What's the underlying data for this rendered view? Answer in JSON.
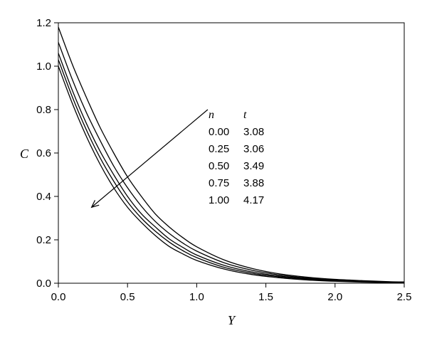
{
  "chart_data": {
    "type": "line",
    "xlabel": "Y",
    "ylabel": "C",
    "xlim": [
      0.0,
      2.5
    ],
    "ylim": [
      0.0,
      1.2
    ],
    "x_ticks": [
      "0.0",
      "0.5",
      "1.0",
      "1.5",
      "2.0",
      "2.5"
    ],
    "y_ticks": [
      "0.0",
      "0.2",
      "0.4",
      "0.6",
      "0.8",
      "1.0",
      "1.2"
    ],
    "grid": false,
    "legend": {
      "placement": "center-right",
      "headers": [
        "n",
        "t"
      ],
      "rows": [
        [
          "0.00",
          "3.08"
        ],
        [
          "0.25",
          "3.06"
        ],
        [
          "0.50",
          "3.49"
        ],
        [
          "0.75",
          "3.88"
        ],
        [
          "1.00",
          "4.17"
        ]
      ]
    },
    "x": [
      0.0,
      0.1,
      0.2,
      0.3,
      0.4,
      0.5,
      0.6,
      0.7,
      0.8,
      0.9,
      1.0,
      1.2,
      1.4,
      1.6,
      1.8,
      2.0,
      2.2,
      2.4,
      2.5
    ],
    "series": [
      {
        "values": [
          1.0,
          0.83,
          0.68,
          0.55,
          0.44,
          0.35,
          0.28,
          0.22,
          0.17,
          0.135,
          0.105,
          0.065,
          0.04,
          0.025,
          0.015,
          0.009,
          0.005,
          0.003,
          0.002
        ]
      },
      {
        "values": [
          1.03,
          0.86,
          0.71,
          0.58,
          0.47,
          0.375,
          0.3,
          0.24,
          0.19,
          0.15,
          0.118,
          0.073,
          0.046,
          0.029,
          0.018,
          0.011,
          0.007,
          0.004,
          0.003
        ]
      },
      {
        "values": [
          1.06,
          0.89,
          0.74,
          0.61,
          0.5,
          0.4,
          0.32,
          0.26,
          0.205,
          0.165,
          0.13,
          0.082,
          0.052,
          0.033,
          0.021,
          0.013,
          0.008,
          0.005,
          0.004
        ]
      },
      {
        "values": [
          1.11,
          0.94,
          0.79,
          0.66,
          0.54,
          0.44,
          0.355,
          0.285,
          0.23,
          0.185,
          0.148,
          0.094,
          0.06,
          0.038,
          0.024,
          0.015,
          0.01,
          0.006,
          0.005
        ]
      },
      {
        "values": [
          1.18,
          1.01,
          0.86,
          0.72,
          0.6,
          0.49,
          0.4,
          0.32,
          0.26,
          0.21,
          0.168,
          0.107,
          0.068,
          0.043,
          0.028,
          0.018,
          0.012,
          0.007,
          0.006
        ]
      }
    ],
    "annotation": {
      "type": "arrow",
      "from": [
        1.08,
        0.8
      ],
      "to": [
        0.24,
        0.35
      ]
    }
  }
}
